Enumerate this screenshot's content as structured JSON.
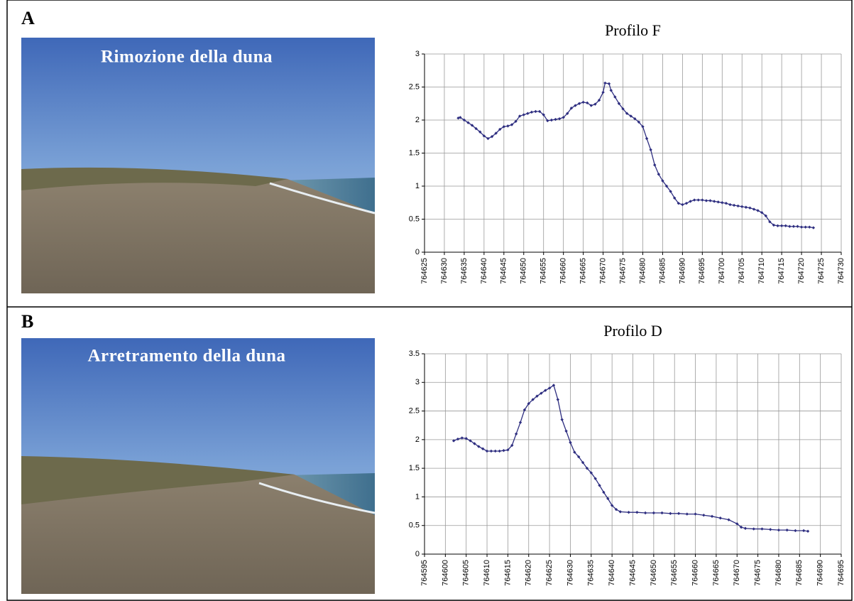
{
  "panels": [
    {
      "label": "A",
      "photo_caption": "Rimozione della duna"
    },
    {
      "label": "B",
      "photo_caption": "Arretramento della duna"
    }
  ],
  "chart_data": [
    {
      "type": "line",
      "title": "Profilo F",
      "color": "#2e2e80",
      "marker": "diamond",
      "grid": true,
      "x": [
        764633.5,
        764634,
        764635,
        764636,
        764637,
        764638,
        764639,
        764640,
        764641,
        764642,
        764643,
        764644,
        764645,
        764646,
        764647,
        764648,
        764649,
        764650,
        764651,
        764652,
        764653,
        764654,
        764655,
        764656,
        764657,
        764658,
        764659,
        764660,
        764661,
        764662,
        764663,
        764664,
        764665,
        764666,
        764667,
        764668,
        764669,
        764670,
        764670.5,
        764671.5,
        764672,
        764673,
        764674,
        764675,
        764676,
        764677,
        764678,
        764679,
        764680,
        764681,
        764682,
        764683,
        764684,
        764685,
        764686,
        764687,
        764688,
        764689,
        764690,
        764691,
        764692,
        764693,
        764694,
        764695,
        764696,
        764697,
        764698,
        764699,
        764700,
        764701,
        764702,
        764703,
        764704,
        764705,
        764706,
        764707,
        764708,
        764709,
        764710,
        764711,
        764712,
        764713,
        764714,
        764715,
        764716,
        764717,
        764718,
        764719,
        764720,
        764721,
        764722,
        764723
      ],
      "values": [
        2.03,
        2.04,
        2.0,
        1.96,
        1.92,
        1.87,
        1.82,
        1.76,
        1.72,
        1.75,
        1.8,
        1.86,
        1.9,
        1.91,
        1.93,
        1.98,
        2.06,
        2.08,
        2.1,
        2.12,
        2.13,
        2.13,
        2.08,
        1.99,
        2.0,
        2.01,
        2.02,
        2.04,
        2.1,
        2.18,
        2.22,
        2.25,
        2.27,
        2.26,
        2.22,
        2.24,
        2.3,
        2.42,
        2.56,
        2.55,
        2.45,
        2.35,
        2.25,
        2.17,
        2.1,
        2.06,
        2.02,
        1.97,
        1.9,
        1.72,
        1.55,
        1.32,
        1.18,
        1.08,
        1.0,
        0.92,
        0.82,
        0.74,
        0.72,
        0.74,
        0.77,
        0.79,
        0.79,
        0.79,
        0.78,
        0.78,
        0.77,
        0.76,
        0.75,
        0.74,
        0.72,
        0.71,
        0.7,
        0.69,
        0.68,
        0.67,
        0.65,
        0.63,
        0.6,
        0.55,
        0.46,
        0.41,
        0.4,
        0.4,
        0.4,
        0.39,
        0.39,
        0.39,
        0.38,
        0.38,
        0.38,
        0.37
      ],
      "xlim": [
        764625,
        764730
      ],
      "xticks": [
        764625,
        764630,
        764635,
        764640,
        764645,
        764650,
        764655,
        764660,
        764665,
        764670,
        764675,
        764680,
        764685,
        764690,
        764695,
        764700,
        764705,
        764710,
        764715,
        764720,
        764725,
        764730
      ],
      "ylim": [
        0,
        3
      ],
      "yticks": [
        0,
        0.5,
        1,
        1.5,
        2,
        2.5,
        3
      ]
    },
    {
      "type": "line",
      "title": "Profilo D",
      "color": "#2e2e80",
      "marker": "diamond",
      "grid": true,
      "x": [
        764602,
        764603,
        764604,
        764605,
        764606,
        764607,
        764608,
        764609,
        764610,
        764611,
        764612,
        764613,
        764614,
        764615,
        764616,
        764617,
        764618,
        764619,
        764620,
        764621,
        764622,
        764623,
        764624,
        764625,
        764626,
        764627,
        764628,
        764629,
        764630,
        764631,
        764632,
        764633,
        764634,
        764635,
        764636,
        764637,
        764638,
        764639,
        764640,
        764641,
        764642,
        764644,
        764646,
        764648,
        764650,
        764652,
        764654,
        764656,
        764658,
        764660,
        764662,
        764664,
        764666,
        764668,
        764670,
        764671,
        764672,
        764674,
        764676,
        764678,
        764680,
        764682,
        764684,
        764686,
        764687
      ],
      "values": [
        1.98,
        2.01,
        2.03,
        2.02,
        1.98,
        1.93,
        1.88,
        1.84,
        1.8,
        1.8,
        1.8,
        1.8,
        1.81,
        1.82,
        1.9,
        2.1,
        2.3,
        2.52,
        2.63,
        2.7,
        2.76,
        2.81,
        2.86,
        2.9,
        2.95,
        2.7,
        2.35,
        2.15,
        1.95,
        1.78,
        1.7,
        1.6,
        1.5,
        1.42,
        1.32,
        1.2,
        1.08,
        0.97,
        0.85,
        0.78,
        0.74,
        0.73,
        0.73,
        0.72,
        0.72,
        0.72,
        0.71,
        0.71,
        0.7,
        0.7,
        0.68,
        0.66,
        0.63,
        0.6,
        0.53,
        0.47,
        0.45,
        0.44,
        0.44,
        0.43,
        0.42,
        0.42,
        0.41,
        0.41,
        0.4
      ],
      "xlim": [
        764595,
        764695
      ],
      "xticks": [
        764595,
        764600,
        764605,
        764610,
        764615,
        764620,
        764625,
        764630,
        764635,
        764640,
        764645,
        764650,
        764655,
        764660,
        764665,
        764670,
        764675,
        764680,
        764685,
        764690,
        764695
      ],
      "ylim": [
        0,
        3.5
      ],
      "yticks": [
        0,
        0.5,
        1,
        1.5,
        2,
        2.5,
        3,
        3.5
      ]
    }
  ]
}
